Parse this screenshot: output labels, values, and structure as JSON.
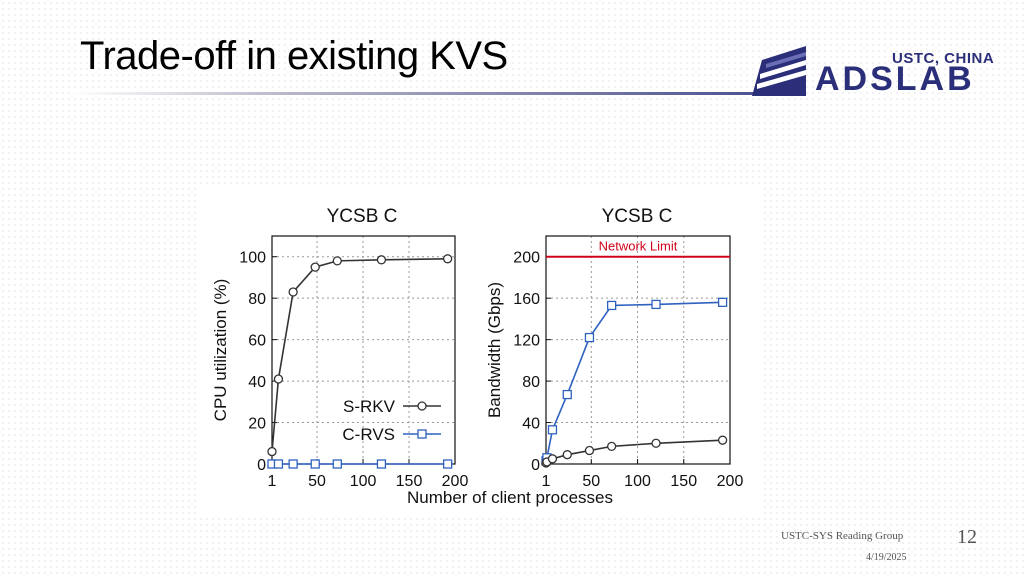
{
  "slide": {
    "title": "Trade-off in existing KVS",
    "logo": {
      "institution": "USTC, CHINA",
      "name": "ADSLAB"
    },
    "footer": {
      "group": "USTC-SYS Reading Group",
      "page": "12",
      "date": "4/19/2025"
    }
  },
  "colors": {
    "srkv": "#333333",
    "crvs": "#2f62c0",
    "network_limit": "#d0021b",
    "logo": "#2b2f7a"
  },
  "chart_data": [
    {
      "type": "line",
      "title": "YCSB C",
      "xlabel": "Number of client processes",
      "ylabel": "CPU utilization (%)",
      "xlim": [
        1,
        200
      ],
      "ylim": [
        0,
        110
      ],
      "xticks": [
        1,
        50,
        100,
        150,
        200
      ],
      "yticks": [
        0,
        20,
        40,
        60,
        80,
        100
      ],
      "grid": true,
      "legend_position": "bottom-right",
      "series": [
        {
          "name": "S-RKV",
          "marker": "circle",
          "x": [
            1,
            8,
            24,
            48,
            72,
            120,
            192
          ],
          "y": [
            6,
            41,
            83,
            95,
            98,
            98.5,
            99
          ]
        },
        {
          "name": "C-RVS",
          "marker": "square",
          "x": [
            1,
            8,
            24,
            48,
            72,
            120,
            192
          ],
          "y": [
            0,
            0,
            0,
            0,
            0,
            0,
            0
          ]
        }
      ]
    },
    {
      "type": "line",
      "title": "YCSB C",
      "xlabel": "Number of client processes",
      "ylabel": "Bandwidth (Gbps)",
      "xlim": [
        1,
        200
      ],
      "ylim": [
        0,
        220
      ],
      "xticks": [
        1,
        50,
        100,
        150,
        200
      ],
      "yticks": [
        0,
        40,
        80,
        120,
        160,
        200
      ],
      "grid": true,
      "reference_line": {
        "label": "Network Limit",
        "y": 200
      },
      "series": [
        {
          "name": "C-RVS",
          "marker": "square",
          "x": [
            1,
            2,
            8,
            24,
            48,
            72,
            120,
            192
          ],
          "y": [
            3,
            6,
            33,
            67,
            122,
            153,
            154,
            156
          ]
        },
        {
          "name": "S-RKV",
          "marker": "circle",
          "x": [
            1,
            2,
            8,
            24,
            48,
            72,
            120,
            192
          ],
          "y": [
            1,
            2,
            5,
            9,
            13,
            17,
            20,
            23
          ]
        }
      ]
    }
  ]
}
